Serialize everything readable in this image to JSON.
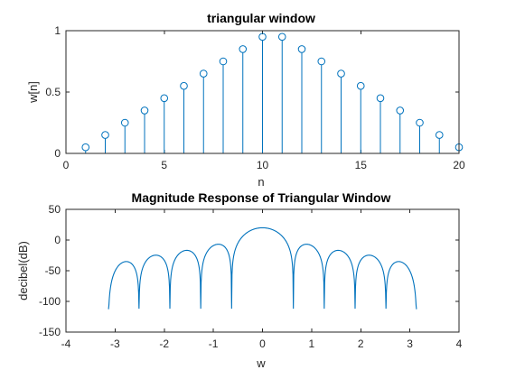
{
  "chart_data": [
    {
      "type": "stem",
      "title": "triangular window",
      "xlabel": "n",
      "ylabel": "w[n]",
      "xlim": [
        0,
        20
      ],
      "ylim": [
        0,
        1
      ],
      "xticks": [
        0,
        5,
        10,
        15,
        20
      ],
      "yticks": [
        0,
        0.5,
        1
      ],
      "x": [
        1,
        2,
        3,
        4,
        5,
        6,
        7,
        8,
        9,
        10,
        11,
        12,
        13,
        14,
        15,
        16,
        17,
        18,
        19,
        20
      ],
      "y": [
        0.05,
        0.15,
        0.25,
        0.35,
        0.45,
        0.55,
        0.65,
        0.75,
        0.85,
        0.95,
        0.95,
        0.85,
        0.75,
        0.65,
        0.55,
        0.45,
        0.35,
        0.25,
        0.15,
        0.05
      ],
      "color": "#0072bd"
    },
    {
      "type": "line",
      "title": "Magnitude Response of Triangular Window",
      "xlabel": "w",
      "ylabel": "decibel(dB)",
      "xlim": [
        -4,
        4
      ],
      "ylim": [
        -150,
        50
      ],
      "xticks": [
        -4,
        -3,
        -2,
        -1,
        0,
        1,
        2,
        3,
        4
      ],
      "yticks": [
        -150,
        -100,
        -50,
        0,
        50
      ],
      "x_range": [
        -3.1416,
        3.1416
      ],
      "peak_db": 20,
      "window_length": 20,
      "color": "#0072bd"
    }
  ]
}
